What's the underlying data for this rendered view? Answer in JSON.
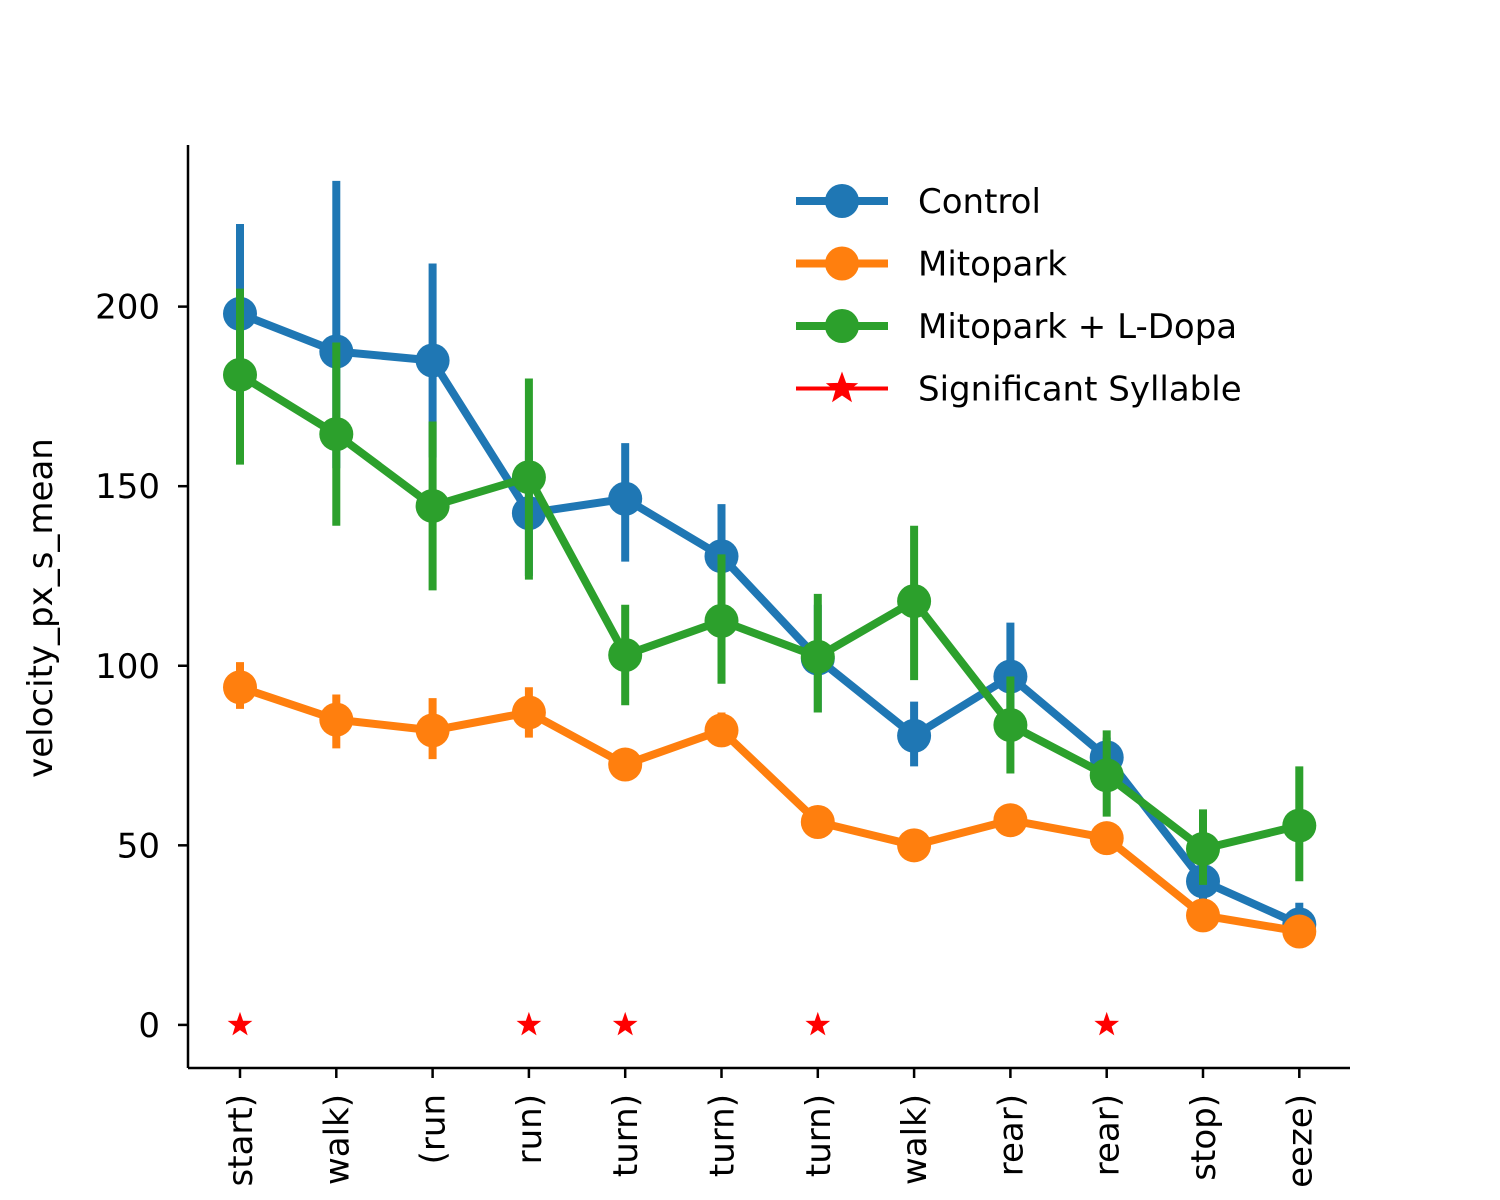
{
  "chart_data": {
    "type": "line",
    "title": "",
    "xlabel": "",
    "ylabel": "velocity_px_s_mean",
    "ylim": [
      -12,
      245
    ],
    "yticks": [
      0,
      50,
      100,
      150,
      200
    ],
    "grid": false,
    "legend_position": "top-right",
    "categories": [
      "start)",
      "walk)",
      "(run",
      "run)",
      "turn)",
      "turn)",
      "turn)",
      "walk)",
      "rear)",
      "rear)",
      "stop)",
      "eeze)"
    ],
    "series": [
      {
        "name": "Control",
        "color": "#1f77b4",
        "values": [
          198,
          187.5,
          185,
          142.5,
          146.5,
          130.5,
          102,
          80.5,
          97,
          74.5,
          40,
          28
        ],
        "err_low": [
          189,
          155,
          158,
          125,
          129,
          114,
          87,
          72,
          85,
          66,
          33,
          25
        ],
        "err_high": [
          223,
          235,
          212,
          160,
          162,
          145,
          117,
          90,
          112,
          80,
          47,
          34
        ]
      },
      {
        "name": "Mitopark",
        "color": "#ff7f0e",
        "values": [
          94,
          85,
          82,
          87,
          72.5,
          82,
          56.5,
          50,
          57,
          52,
          30.5,
          26
        ],
        "err_low": [
          88,
          77,
          74,
          80,
          69,
          78,
          53,
          47,
          54,
          49,
          28,
          23
        ],
        "err_high": [
          101,
          92,
          91,
          94,
          77,
          87,
          61,
          53,
          60,
          55,
          34,
          29
        ]
      },
      {
        "name": "Mitopark + L-Dopa",
        "color": "#2ca02c",
        "values": [
          181,
          164.5,
          144.5,
          152.5,
          103,
          112.5,
          102.5,
          118,
          83.5,
          69.5,
          49,
          55.5
        ],
        "err_low": [
          156,
          139,
          121,
          124,
          89,
          95,
          87,
          96,
          70,
          58,
          39,
          40
        ],
        "err_high": [
          205,
          190,
          168,
          180,
          117,
          131,
          120,
          139,
          97,
          82,
          60,
          72
        ]
      }
    ],
    "significant": {
      "name": "Significant Syllable",
      "color": "#ff0000",
      "category_indices": [
        0,
        3,
        4,
        6,
        9
      ],
      "y": 0
    }
  }
}
